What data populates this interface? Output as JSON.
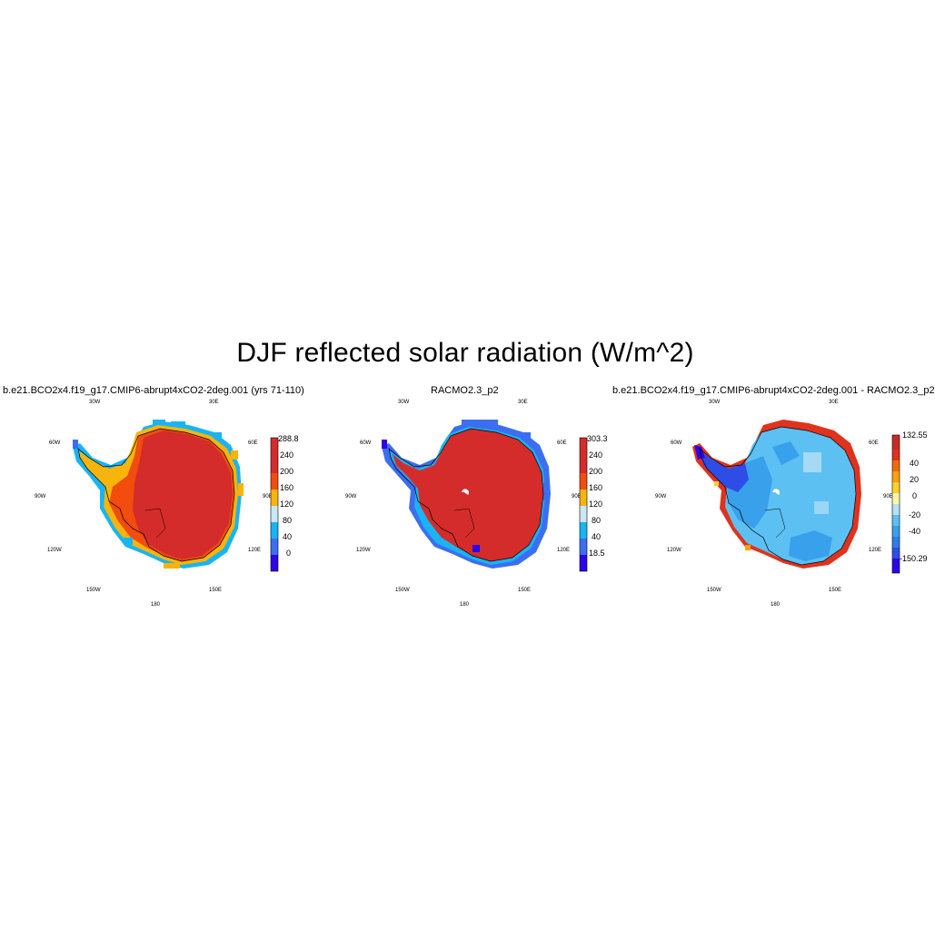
{
  "title": "DJF reflected solar radiation (W/m^2)",
  "panels": [
    {
      "title": "b.e21.BCO2x4.f19_g17.CMIP6-abrupt4xCO2-2deg.001 (yrs 71-110)",
      "colorbar": {
        "colors": [
          "#2b06e8",
          "#3c6ef0",
          "#19b4f2",
          "#c9e7f5",
          "#f8b40a",
          "#f24c0e",
          "#d42c2a"
        ],
        "labels": [
          "0",
          "40",
          "80",
          "120",
          "160",
          "200",
          "240",
          "288.8"
        ]
      }
    },
    {
      "title": "RACMO2.3_p2",
      "colorbar": {
        "colors": [
          "#2b06e8",
          "#3c6ef0",
          "#19b4f2",
          "#c9e7f5",
          "#f8b40a",
          "#f24c0e",
          "#d42c2a"
        ],
        "labels": [
          "18.5",
          "40",
          "80",
          "120",
          "160",
          "200",
          "240",
          "303.3"
        ]
      }
    },
    {
      "title": "b.e21.BCO2x4.f19_g17.CMIP6-abrupt4xCO2-2deg.001 - RACMO2.3_p2",
      "colorbar": {
        "colors": [
          "#2a06e8",
          "#2e4de6",
          "#2f7ee8",
          "#39a0ec",
          "#5cc0f2",
          "#b7e0f5",
          "#fff7a8",
          "#fbd12a",
          "#f8a20e",
          "#f06a0c",
          "#e0321d",
          "#c82a26"
        ],
        "labels": [
          "-150.29",
          "",
          "-40",
          "",
          "-20",
          "",
          "0",
          "",
          "20",
          "",
          "40",
          "",
          "132.55"
        ]
      }
    }
  ],
  "longitude_labels": [
    "30W",
    "30E",
    "60W",
    "60E",
    "90W",
    "90E",
    "120W",
    "120E",
    "150W",
    "150E",
    "180"
  ]
}
